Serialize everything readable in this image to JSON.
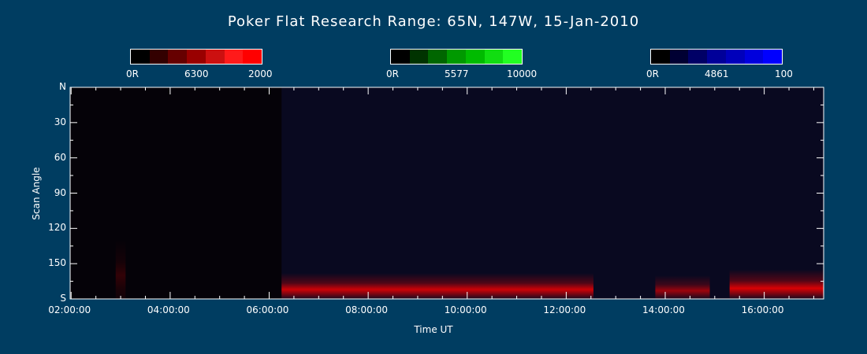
{
  "title": "Poker Flat Research Range: 65N, 147W, 15-Jan-2010",
  "colorbars": [
    {
      "low_label": "0R",
      "mid_label": "6300",
      "high_label": "2000",
      "colors": [
        "#000000",
        "#330000",
        "#660000",
        "#990000",
        "#cc1010",
        "#ff1a1a",
        "#ff0000"
      ]
    },
    {
      "low_label": "0R",
      "mid_label": "5577",
      "high_label": "10000",
      "colors": [
        "#000000",
        "#003300",
        "#006600",
        "#009900",
        "#00bb00",
        "#11dd11",
        "#22ff22"
      ]
    },
    {
      "low_label": "0R",
      "mid_label": "4861",
      "high_label": "100",
      "colors": [
        "#000000",
        "#000033",
        "#000066",
        "#000099",
        "#0000bb",
        "#0000dd",
        "#0000ff"
      ]
    }
  ],
  "chart_data": {
    "type": "heatmap",
    "title": "Poker Flat Research Range: 65N, 147W, 15-Jan-2010",
    "xlabel": "Time UT",
    "ylabel": "Scan Angle",
    "x_ticks": [
      "02:00:00",
      "04:00:00",
      "06:00:00",
      "08:00:00",
      "10:00:00",
      "12:00:00",
      "14:00:00",
      "16:00:00"
    ],
    "x_tick_values": [
      2,
      4,
      6,
      8,
      10,
      12,
      14,
      16
    ],
    "xlim": [
      1.98,
      17.2
    ],
    "y_ticks": [
      "N",
      "30",
      "60",
      "90",
      "120",
      "150",
      "S"
    ],
    "y_tick_values": [
      0,
      30,
      60,
      90,
      120,
      150,
      180
    ],
    "ylim": [
      0,
      180
    ],
    "emission_bands": [
      {
        "start": 6.25,
        "end": 12.55,
        "angle_from": 158,
        "angle_to": 180,
        "peak_angle": 172,
        "color": "#ff0000",
        "intensity": 0.8
      },
      {
        "start": 13.8,
        "end": 14.9,
        "angle_from": 160,
        "angle_to": 180,
        "peak_angle": 173,
        "color": "#ff0000",
        "intensity": 0.6
      },
      {
        "start": 15.3,
        "end": 17.2,
        "angle_from": 155,
        "angle_to": 180,
        "peak_angle": 171,
        "color": "#ff0000",
        "intensity": 0.85
      },
      {
        "start": 2.9,
        "end": 3.1,
        "angle_from": 130,
        "angle_to": 180,
        "peak_angle": 160,
        "color": "#ff0000",
        "intensity": 0.18
      }
    ]
  }
}
